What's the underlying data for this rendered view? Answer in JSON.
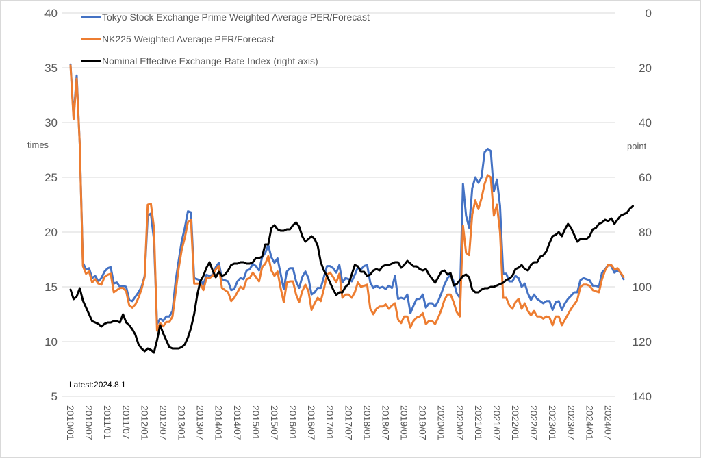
{
  "chart_data": {
    "type": "line",
    "title": "",
    "annotation": "Latest:2024.8.1",
    "left_axis": {
      "label": "times",
      "ylim": [
        5,
        40
      ],
      "ticks": [
        5,
        10,
        15,
        20,
        25,
        30,
        35,
        40
      ]
    },
    "right_axis": {
      "label": "point",
      "ylim": [
        0,
        140
      ],
      "inverted": true,
      "ticks": [
        0,
        20,
        40,
        60,
        80,
        100,
        120,
        140
      ]
    },
    "x_start": "2010/01",
    "x_end": "2024/07",
    "frequency": "monthly",
    "x_tick_labels": [
      "2010/01",
      "2010/07",
      "2011/01",
      "2011/07",
      "2012/01",
      "2012/07",
      "2013/01",
      "2013/07",
      "2014/01",
      "2014/07",
      "2015/01",
      "2015/07",
      "2016/01",
      "2016/07",
      "2017/01",
      "2017/07",
      "2018/01",
      "2018/07",
      "2019/01",
      "2019/07",
      "2020/01",
      "2020/07",
      "2021/01",
      "2021/07",
      "2022/01",
      "2022/07",
      "2023/01",
      "2023/07",
      "2024/01",
      "2024/07"
    ],
    "grid": true,
    "legend_position": "top-left",
    "series": [
      {
        "name": "Tokyo Stock Exchange Prime Weighted Average PER/Forecast",
        "axis": "left",
        "color": "#4472c4",
        "values": [
          35.3,
          30.5,
          34.3,
          28,
          17.2,
          16.6,
          16.7,
          15.8,
          16,
          15.5,
          15.8,
          16.4,
          16.7,
          16.8,
          15.3,
          15.4,
          15,
          15.1,
          15,
          13.8,
          13.7,
          14.1,
          14.5,
          15,
          16,
          21.5,
          21.7,
          19.3,
          11.6,
          12.1,
          11.9,
          12.3,
          12.3,
          12.8,
          15.5,
          17.4,
          19.2,
          20.4,
          21.9,
          21.8,
          15.8,
          15.7,
          15.6,
          15.2,
          16.1,
          16,
          16.1,
          16.8,
          17.2,
          15.7,
          15.6,
          15.5,
          14.7,
          14.8,
          15.5,
          15.8,
          15.7,
          16.5,
          16.6,
          17.1,
          16.9,
          16.5,
          17.7,
          18.1,
          18.8,
          17.7,
          17.2,
          17.6,
          16.2,
          14.8,
          16.4,
          16.7,
          16.7,
          15.5,
          14.9,
          15.9,
          16.4,
          15.8,
          14.3,
          14.5,
          14.9,
          14.9,
          15.9,
          16.9,
          16.9,
          16.7,
          16.3,
          17,
          15.4,
          15.8,
          15.7,
          15.5,
          16.1,
          16.8,
          16.6,
          16.9,
          17,
          15.4,
          14.9,
          15.1,
          14.9,
          15,
          14.8,
          15.1,
          14.9,
          16,
          13.9,
          14,
          13.9,
          14.3,
          12.6,
          13.3,
          13.9,
          13.9,
          14.3,
          13.1,
          13.5,
          13.5,
          13.2,
          13.7,
          14.4,
          15.2,
          15.8,
          16.1,
          15.5,
          14.4,
          14,
          24.4,
          21.5,
          20.4,
          24,
          25,
          24.5,
          25,
          27.3,
          27.6,
          27.4,
          23.7,
          24.8,
          22.4,
          16.2,
          16.2,
          15.5,
          15.5,
          16,
          15.8,
          15,
          15.3,
          14.4,
          13.8,
          14.3,
          13.9,
          13.7,
          13.5,
          13.7,
          13.7,
          12.9,
          13.6,
          13.7,
          12.9,
          13.5,
          13.9,
          14.2,
          14.5,
          14.5,
          15.6,
          15.8,
          15.7,
          15.6,
          15.1,
          15.1,
          15,
          16.3,
          16.6,
          17,
          16.9,
          16.3,
          16.5,
          16.3,
          15.7
        ]
      },
      {
        "name": "NK225 Weighted Average PER/Forecast",
        "axis": "left",
        "color": "#ed7d31",
        "values": [
          35.2,
          30.3,
          34,
          28,
          16.9,
          16.2,
          16.4,
          15.4,
          15.7,
          15.3,
          15.2,
          15.9,
          16.1,
          16.2,
          14.5,
          14.7,
          14.9,
          14.9,
          14.6,
          13.3,
          13.1,
          13.4,
          14,
          14.8,
          15.9,
          22.5,
          22.6,
          20.4,
          11,
          11.7,
          11.4,
          11.8,
          11.8,
          12.3,
          14.5,
          16.7,
          18.4,
          19.5,
          20.9,
          21.1,
          15.3,
          15.3,
          15.3,
          14.7,
          15.8,
          15.8,
          16,
          16.6,
          16.9,
          14.9,
          14.7,
          14.5,
          13.7,
          14,
          14.5,
          15,
          14.8,
          15.7,
          15.8,
          16.3,
          15.9,
          15.5,
          16.8,
          17.1,
          17.8,
          16.5,
          16,
          16.4,
          14.9,
          13.6,
          15.4,
          15.5,
          15.5,
          14.3,
          13.6,
          14.6,
          15.2,
          14.6,
          12.9,
          13.5,
          14,
          13.7,
          14.8,
          16.1,
          16.3,
          15.9,
          15.4,
          16.2,
          14,
          14.3,
          14.3,
          14,
          14.5,
          15.4,
          15,
          15.1,
          15.2,
          13,
          12.5,
          13,
          13.2,
          13.2,
          13.4,
          13,
          13.3,
          13.5,
          12,
          11.7,
          12.3,
          12.3,
          11.3,
          11.9,
          12.2,
          12.3,
          12.6,
          11.6,
          11.9,
          11.9,
          11.6,
          12.2,
          12.9,
          13.8,
          14.3,
          14.3,
          13.6,
          12.7,
          12.3,
          20.6,
          18.1,
          17.9,
          21.6,
          22.9,
          22.1,
          23.1,
          24.4,
          25.2,
          25,
          21.5,
          22.5,
          20,
          14,
          14,
          13.3,
          13,
          13.6,
          13.9,
          13,
          13.5,
          12.8,
          12.4,
          12.8,
          12.3,
          12.3,
          12.1,
          12.3,
          12.2,
          11.5,
          12.3,
          12.3,
          11.5,
          12,
          12.5,
          13,
          13.4,
          13.8,
          15,
          15.2,
          15.2,
          15.1,
          14.7,
          14.6,
          14.5,
          15.7,
          16.5,
          17,
          17,
          16.6,
          16.7,
          16.3,
          15.9
        ]
      },
      {
        "name": "Nominal Effective Exchange Rate Index (right axis)",
        "axis": "right",
        "color": "#000000",
        "values": [
          101,
          104.5,
          103.5,
          100.5,
          105,
          107.5,
          110,
          112.5,
          113,
          113.5,
          114.5,
          113.5,
          113,
          113,
          112.5,
          112.5,
          113,
          110,
          113,
          114,
          115.5,
          117.5,
          121,
          122.5,
          123.5,
          122.5,
          123,
          124,
          119.5,
          114,
          117,
          119.5,
          122,
          122.5,
          122.5,
          122.5,
          122,
          121,
          118.5,
          115,
          110,
          103,
          98,
          96,
          93,
          91,
          94,
          96.5,
          94.5,
          96,
          95.5,
          94,
          92,
          91.5,
          91.5,
          91,
          91,
          91.5,
          91.5,
          91,
          89.5,
          89.5,
          89,
          84.5,
          84.5,
          78.5,
          77.5,
          79,
          79.5,
          79.5,
          79,
          79,
          77.5,
          76.5,
          78,
          81.5,
          83.5,
          82.5,
          81.5,
          82.5,
          85,
          91,
          94,
          96,
          98.5,
          101,
          103,
          102,
          102,
          100,
          99,
          95.5,
          92,
          92.5,
          94.5,
          94.5,
          96,
          95.5,
          94,
          93.5,
          94,
          92.5,
          92,
          92,
          91.5,
          91,
          91,
          93,
          92,
          90.5,
          91.5,
          92.5,
          92.5,
          93.5,
          94,
          93.5,
          95.5,
          97,
          98.5,
          96.5,
          94.5,
          94,
          95.5,
          95,
          99.5,
          99,
          97.5,
          96,
          95.5,
          96.5,
          101,
          102,
          102,
          101,
          100.5,
          100.5,
          100,
          100,
          99.5,
          99,
          98.5,
          97.5,
          97,
          96,
          93.5,
          93,
          92,
          93.5,
          94,
          92,
          91,
          91,
          89,
          88.5,
          87,
          84,
          81.5,
          81,
          80,
          81.5,
          79,
          77,
          78.5,
          81,
          83.5,
          82.5,
          82.5,
          82.5,
          81.5,
          79,
          78.5,
          77,
          76.5,
          75.5,
          76,
          75,
          77,
          75.5,
          74,
          73.5,
          73,
          71.5,
          70.5
        ]
      }
    ]
  }
}
